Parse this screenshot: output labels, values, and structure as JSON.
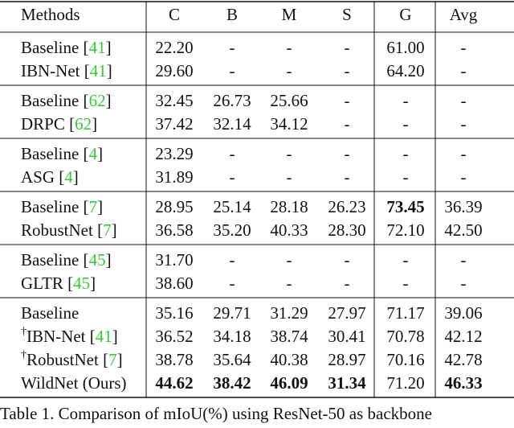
{
  "table": {
    "header": [
      "Methods",
      "C",
      "B",
      "M",
      "S",
      "G",
      "Avg"
    ],
    "groups": [
      {
        "rows": [
          {
            "method": [
              {
                "text": "Baseline ["
              },
              {
                "text": "41",
                "cite": true
              },
              {
                "text": "]"
              }
            ],
            "cells": [
              "22.20",
              "-",
              "-",
              "-",
              "61.00",
              "-"
            ],
            "bold": []
          },
          {
            "method": [
              {
                "text": "IBN-Net ["
              },
              {
                "text": "41",
                "cite": true
              },
              {
                "text": "]"
              }
            ],
            "cells": [
              "29.60",
              "-",
              "-",
              "-",
              "64.20",
              "-"
            ],
            "bold": []
          }
        ]
      },
      {
        "rows": [
          {
            "method": [
              {
                "text": "Baseline ["
              },
              {
                "text": "62",
                "cite": true
              },
              {
                "text": "]"
              }
            ],
            "cells": [
              "32.45",
              "26.73",
              "25.66",
              "-",
              "-",
              "-"
            ],
            "bold": []
          },
          {
            "method": [
              {
                "text": "DRPC ["
              },
              {
                "text": "62",
                "cite": true
              },
              {
                "text": "]"
              }
            ],
            "cells": [
              "37.42",
              "32.14",
              "34.12",
              "-",
              "-",
              "-"
            ],
            "bold": []
          }
        ]
      },
      {
        "rows": [
          {
            "method": [
              {
                "text": "Baseline ["
              },
              {
                "text": "4",
                "cite": true
              },
              {
                "text": "]"
              }
            ],
            "cells": [
              "23.29",
              "-",
              "-",
              "-",
              "-",
              "-"
            ],
            "bold": []
          },
          {
            "method": [
              {
                "text": "ASG ["
              },
              {
                "text": "4",
                "cite": true
              },
              {
                "text": "]"
              }
            ],
            "cells": [
              "31.89",
              "-",
              "-",
              "-",
              "-",
              "-"
            ],
            "bold": []
          }
        ]
      },
      {
        "rows": [
          {
            "method": [
              {
                "text": "Baseline ["
              },
              {
                "text": "7",
                "cite": true
              },
              {
                "text": "]"
              }
            ],
            "cells": [
              "28.95",
              "25.14",
              "28.18",
              "26.23",
              "73.45",
              "36.39"
            ],
            "bold": [
              4
            ]
          },
          {
            "method": [
              {
                "text": "RobustNet ["
              },
              {
                "text": "7",
                "cite": true
              },
              {
                "text": "]"
              }
            ],
            "cells": [
              "36.58",
              "35.20",
              "40.33",
              "28.30",
              "72.10",
              "42.50"
            ],
            "bold": []
          }
        ]
      },
      {
        "rows": [
          {
            "method": [
              {
                "text": "Baseline ["
              },
              {
                "text": "45",
                "cite": true
              },
              {
                "text": "]"
              }
            ],
            "cells": [
              "31.70",
              "-",
              "-",
              "-",
              "-",
              "-"
            ],
            "bold": []
          },
          {
            "method": [
              {
                "text": "GLTR ["
              },
              {
                "text": "45",
                "cite": true
              },
              {
                "text": "]"
              }
            ],
            "cells": [
              "38.60",
              "-",
              "-",
              "-",
              "-",
              "-"
            ],
            "bold": []
          }
        ]
      },
      {
        "rows": [
          {
            "method": [
              {
                "text": "Baseline"
              }
            ],
            "cells": [
              "35.16",
              "29.71",
              "31.29",
              "27.97",
              "71.17",
              "39.06"
            ],
            "bold": []
          },
          {
            "method": [
              {
                "text": "†",
                "sup": true
              },
              {
                "text": "IBN-Net ["
              },
              {
                "text": "41",
                "cite": true
              },
              {
                "text": "]"
              }
            ],
            "cells": [
              "36.52",
              "34.18",
              "38.74",
              "30.41",
              "70.78",
              "42.12"
            ],
            "bold": []
          },
          {
            "method": [
              {
                "text": "†",
                "sup": true
              },
              {
                "text": "RobustNet ["
              },
              {
                "text": "7",
                "cite": true
              },
              {
                "text": "]"
              }
            ],
            "cells": [
              "38.78",
              "35.64",
              "40.38",
              "28.97",
              "70.16",
              "42.78"
            ],
            "bold": []
          },
          {
            "method": [
              {
                "text": "WildNet (Ours)"
              }
            ],
            "cells": [
              "44.62",
              "38.42",
              "46.09",
              "31.34",
              "71.20",
              "46.33"
            ],
            "bold": [
              0,
              1,
              2,
              3,
              5
            ]
          }
        ]
      }
    ],
    "caption": "Table 1. Comparison of mIoU(%) using ResNet-50 as backbone"
  }
}
